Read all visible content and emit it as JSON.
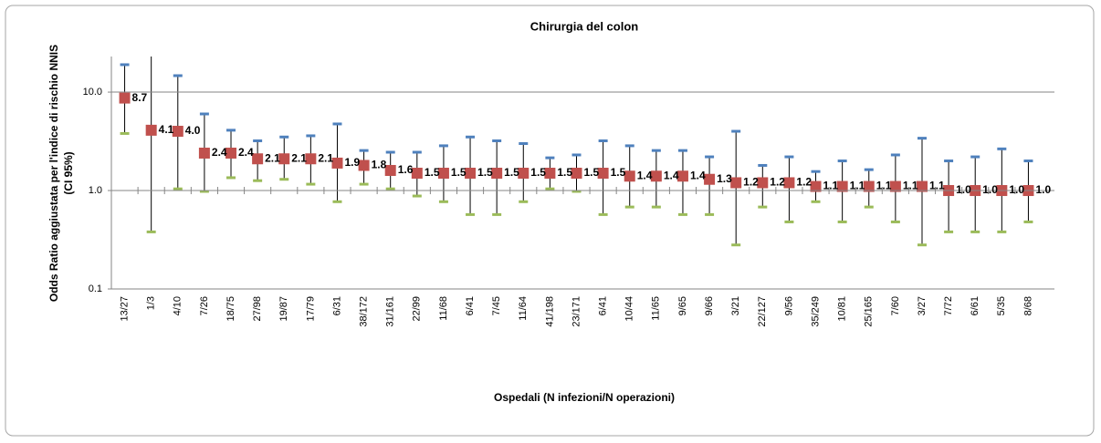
{
  "chart_data": {
    "type": "errorbar",
    "title": "Chirurgia del colon",
    "xlabel": "Ospedali (N infezioni/N operazioni)",
    "ylabel": [
      "Odds Ratio aggiustata per l'indice di rischio NNIS",
      "(CI 95%)"
    ],
    "log_y": true,
    "grid": true,
    "ylim": [
      0.1,
      23
    ],
    "yticks": [
      {
        "value": 0.1,
        "label": "0.1"
      },
      {
        "value": 1,
        "label": "1.0"
      },
      {
        "value": 10,
        "label": "10.0"
      }
    ],
    "categories": [
      "13/27",
      "1/3",
      "4/10",
      "7/26",
      "18/75",
      "27/98",
      "19/87",
      "17/79",
      "6/31",
      "38/172",
      "31/161",
      "22/99",
      "11/68",
      "6/41",
      "7/45",
      "11/64",
      "41/198",
      "23/171",
      "6/41",
      "10/44",
      "11/65",
      "9/65",
      "9/66",
      "3/21",
      "22/127",
      "9/56",
      "35/249",
      "10/81",
      "25/165",
      "7/60",
      "3/27",
      "7/72",
      "6/61",
      "5/35",
      "8/68"
    ],
    "series": [
      {
        "color": "#c0504d",
        "upper_color": "#4f81bd",
        "lower_color": "#9bbb59",
        "values": [
          8.7,
          4.1,
          4.0,
          2.4,
          2.4,
          2.1,
          2.1,
          2.1,
          1.9,
          1.8,
          1.6,
          1.5,
          1.5,
          1.5,
          1.5,
          1.5,
          1.5,
          1.5,
          1.5,
          1.4,
          1.4,
          1.4,
          1.3,
          1.2,
          1.2,
          1.2,
          1.1,
          1.1,
          1.1,
          1.1,
          1.1,
          1.0,
          1.0,
          1.0,
          1.0
        ],
        "value_labels": [
          "8.7",
          "4.1",
          "4.0",
          "2.4",
          "2.4",
          "2.1",
          "2.1",
          "2.1",
          "1.9",
          "1.8",
          "1.6",
          "1.5",
          "1.5",
          "1.5",
          "1.5",
          "1.5",
          "1.5",
          "1.5",
          "1.5",
          "1.4",
          "1.4",
          "1.4",
          "1.3",
          "1.2",
          "1.2",
          "1.2",
          "1.1",
          "1.1",
          "1.1",
          "1.1",
          "1.1",
          "1.0",
          "1.0",
          "1.0",
          "1.0"
        ],
        "upper": [
          19,
          30,
          14.7,
          6.0,
          4.1,
          3.2,
          3.5,
          3.6,
          4.75,
          2.55,
          2.45,
          2.45,
          2.85,
          3.5,
          3.2,
          3.0,
          2.15,
          2.3,
          3.2,
          2.85,
          2.55,
          2.55,
          2.2,
          4.0,
          1.8,
          2.2,
          1.56,
          2.0,
          1.63,
          2.3,
          3.4,
          2.0,
          2.2,
          2.65,
          2.0
        ],
        "lower": [
          3.8,
          0.38,
          1.04,
          0.98,
          1.35,
          1.26,
          1.3,
          1.16,
          0.77,
          1.16,
          1.04,
          0.88,
          0.77,
          0.57,
          0.57,
          0.77,
          1.04,
          0.98,
          0.57,
          0.68,
          0.68,
          0.57,
          0.57,
          0.28,
          0.68,
          0.48,
          0.77,
          0.48,
          0.68,
          0.48,
          0.28,
          0.38,
          0.38,
          0.38,
          0.48
        ]
      }
    ]
  }
}
